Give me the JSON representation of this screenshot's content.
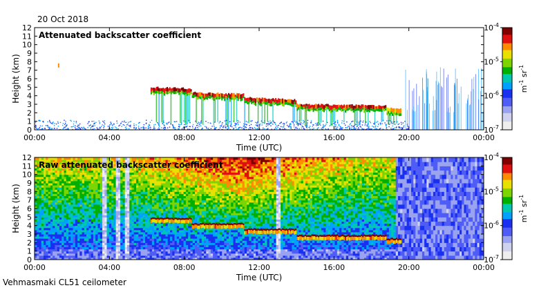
{
  "date": "20 Oct 2018",
  "footer": "Vehmasmaki CL51 ceilometer",
  "colors": {
    "scale": [
      "#eeeeee",
      "#cfd2ee",
      "#9aa3f0",
      "#4f5cf6",
      "#1a30f0",
      "#00a0ff",
      "#00c8b0",
      "#00b000",
      "#7cd400",
      "#e8e000",
      "#ff8c00",
      "#e01010",
      "#800000"
    ],
    "frame": "#000000",
    "background": "#ffffff"
  },
  "chart_data": [
    {
      "type": "heatmap",
      "title": "Attenuated backscatter coefficient",
      "xlabel": "Time (UTC)",
      "ylabel": "Height (km)",
      "x_ticks": [
        "00:00",
        "04:00",
        "08:00",
        "12:00",
        "16:00",
        "20:00",
        "00:00"
      ],
      "y_ticks": [
        "0",
        "1",
        "2",
        "3",
        "4",
        "5",
        "6",
        "7",
        "8",
        "9",
        "10",
        "11",
        "12"
      ],
      "xlim": [
        0,
        24
      ],
      "ylim": [
        0,
        12
      ],
      "colorbar": {
        "scale": "log",
        "range": [
          1e-07,
          0.0001
        ],
        "tick_labels": [
          "10-7",
          "10-6",
          "10-5",
          "10-4"
        ],
        "unit": "m-1 sr-1"
      },
      "features": {
        "surface_layer": {
          "hours": [
            0,
            20
          ],
          "top_km": 1.1,
          "level": 0.3
        },
        "convective_spikes": {
          "hours": [
            19.8,
            24
          ],
          "top_km": 7.4,
          "level": 0.35
        },
        "cloud_layer": [
          {
            "hours": [
              6.2,
              8.4
            ],
            "top_km": 5.0,
            "bottom_km": 4.5,
            "level": 0.85
          },
          {
            "hours": [
              8.4,
              11.2
            ],
            "top_km": 4.4,
            "bottom_km": 3.7,
            "level": 0.8
          },
          {
            "hours": [
              11.2,
              14
            ],
            "top_km": 3.8,
            "bottom_km": 2.9,
            "level": 0.82
          },
          {
            "hours": [
              14,
              18.8
            ],
            "top_km": 3.0,
            "bottom_km": 2.5,
            "level": 0.82
          },
          {
            "hours": [
              18.8,
              19.6
            ],
            "top_km": 2.6,
            "bottom_km": 2.1,
            "level": 0.7
          }
        ]
      }
    },
    {
      "type": "heatmap",
      "title": "Raw attenuated backscatter coefficient",
      "xlabel": "Time (UTC)",
      "ylabel": "Height (km)",
      "x_ticks": [
        "00:00",
        "04:00",
        "08:00",
        "12:00",
        "16:00",
        "20:00",
        "00:00"
      ],
      "y_ticks": [
        "0",
        "1",
        "2",
        "3",
        "4",
        "5",
        "6",
        "7",
        "8",
        "9",
        "10",
        "11",
        "12"
      ],
      "xlim": [
        0,
        24
      ],
      "ylim": [
        0,
        12
      ],
      "colorbar": {
        "scale": "log",
        "range": [
          1e-07,
          0.0001
        ],
        "tick_labels": [
          "10-7",
          "10-6",
          "10-5",
          "10-4"
        ],
        "unit": "m-1 sr-1"
      },
      "features": {
        "noise_background": {
          "hours": [
            0,
            19.3
          ],
          "level_low": 0.3,
          "level_high": 0.75
        },
        "warm_noise_center_hours": [
          10,
          12
        ],
        "quiet_period": {
          "hours": [
            19.3,
            24
          ],
          "level": 0.25
        },
        "clean_columns_hours": [
          3.7,
          4.4,
          4.9,
          13.0
        ],
        "cloud_layer_hours": [
          6.2,
          19.6
        ]
      }
    }
  ]
}
